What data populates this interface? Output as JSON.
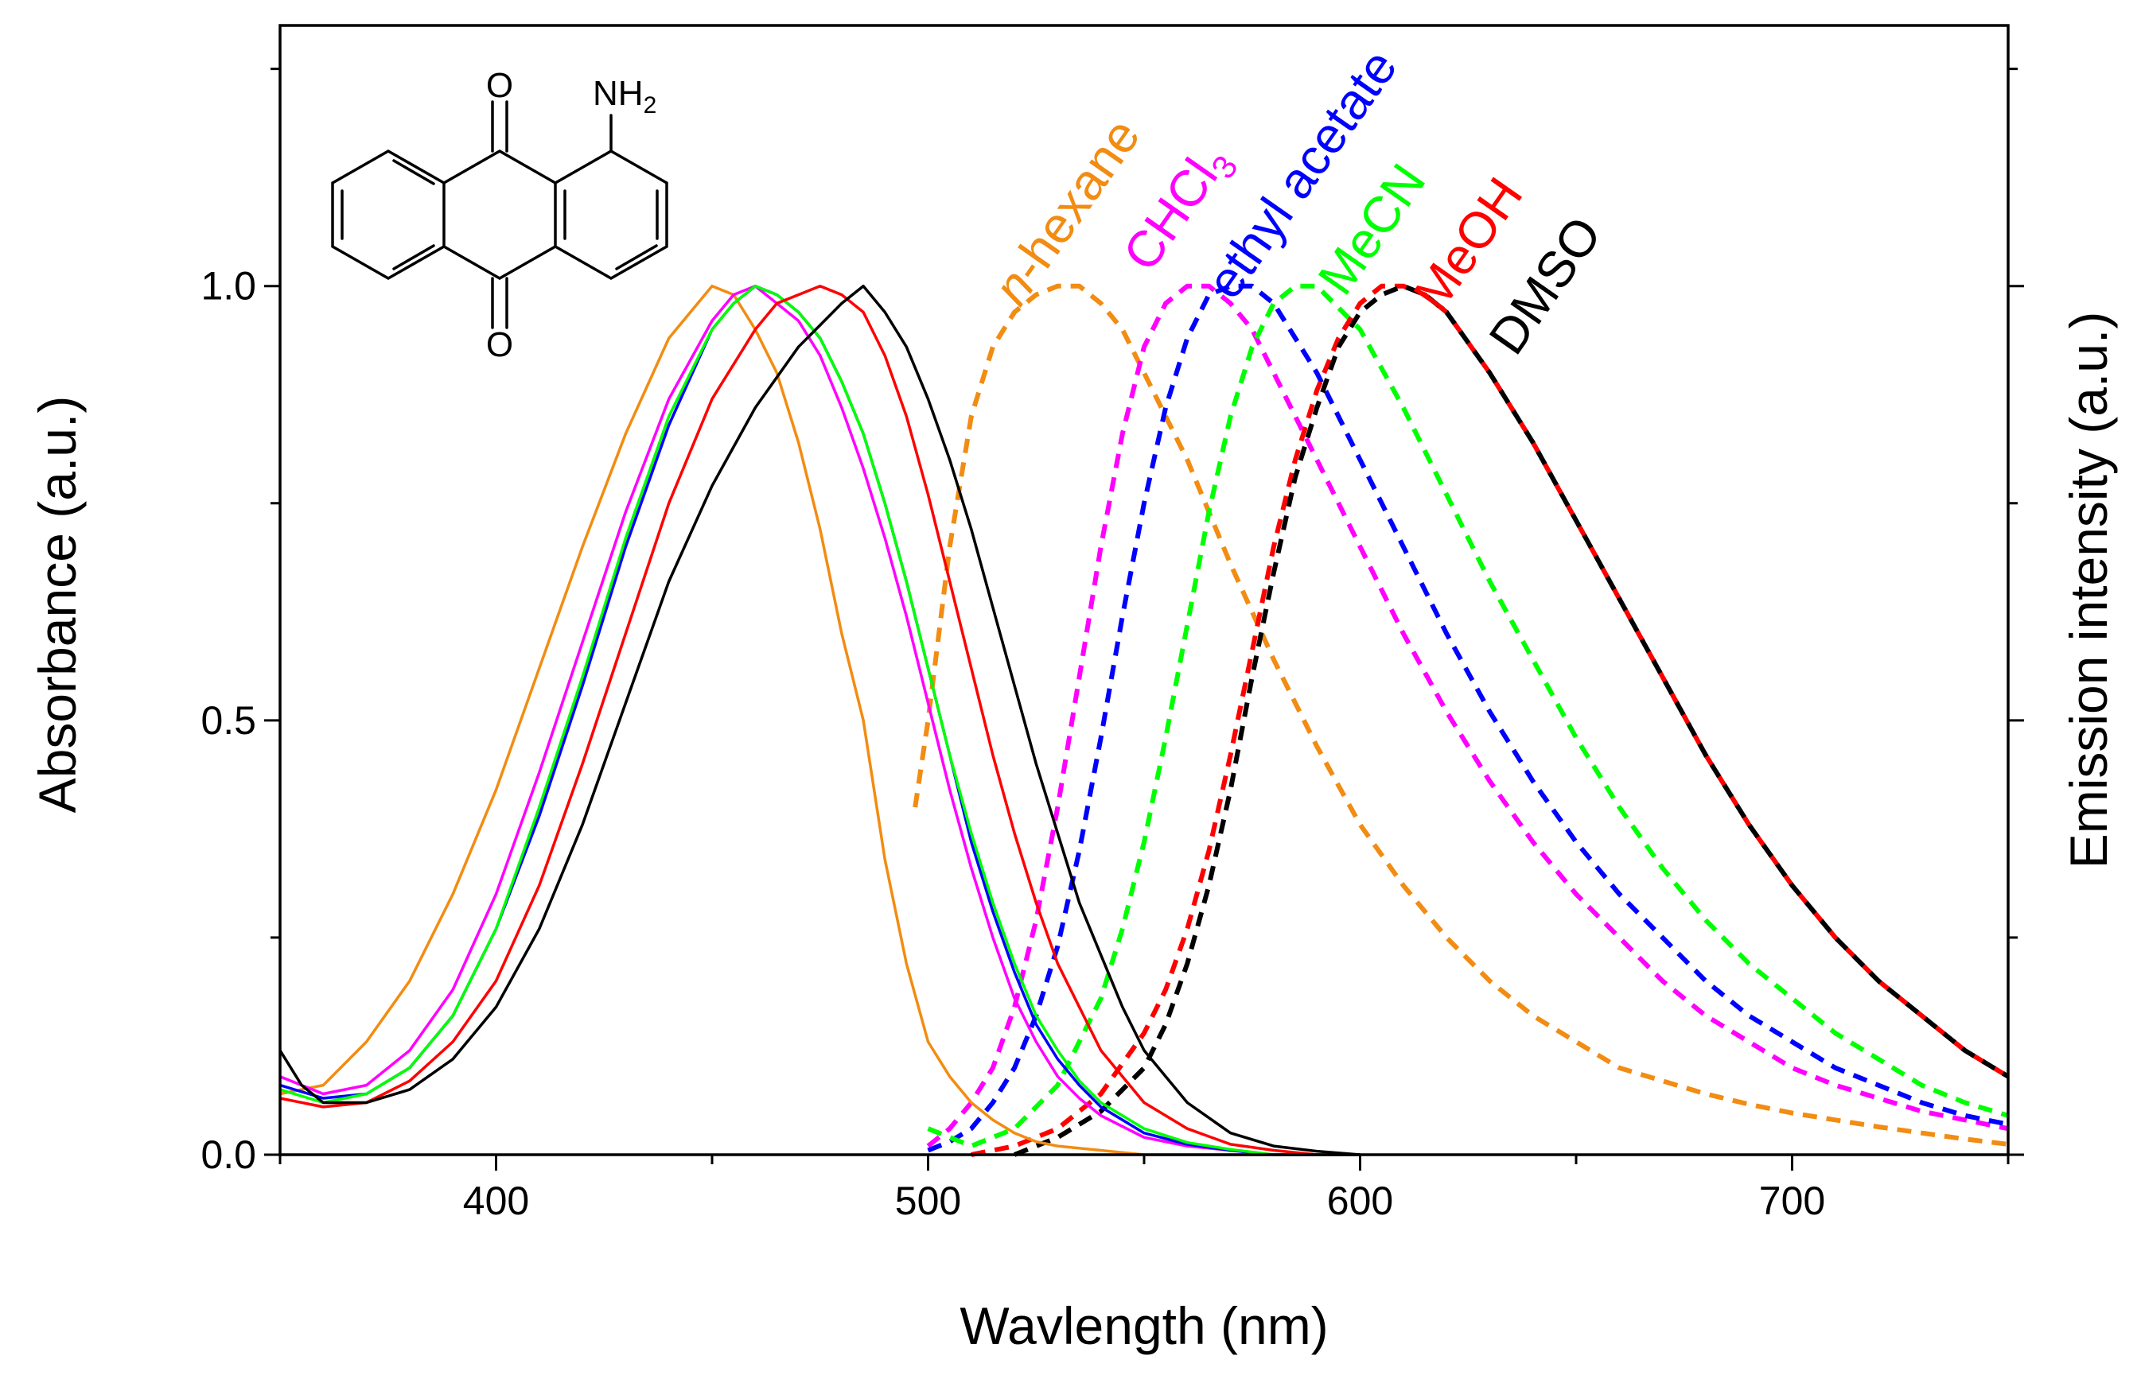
{
  "chart_data": {
    "type": "line",
    "title": "",
    "xlabel": "Wavlength (nm)",
    "ylabel": "Absorbance (a.u.)",
    "y2label": "Emission intensity (a.u.)",
    "xlim": [
      350,
      750
    ],
    "ylim": [
      0,
      1.3
    ],
    "x_ticks": [
      400,
      500,
      600,
      700
    ],
    "x_tick_labels": [
      "400",
      "500",
      "600",
      "700"
    ],
    "y_ticks": [
      0,
      0.5,
      1.0
    ],
    "y_tick_labels": [
      "0.0",
      "0.5",
      "1.0"
    ],
    "grid": false,
    "molecule_labels": {
      "top_carbonyl": "O",
      "bottom_carbonyl": "O",
      "amine": "NH",
      "amine_sub": "2"
    },
    "series": [
      {
        "name": "n-hexane",
        "label_main": "n",
        "label_rest": "-hexane",
        "color": "#F28C12",
        "kind": "absorbance",
        "x": [
          350,
          360,
          370,
          380,
          390,
          400,
          410,
          420,
          430,
          440,
          450,
          455,
          460,
          465,
          470,
          475,
          480,
          485,
          490,
          495,
          500,
          505,
          510,
          515,
          520,
          525,
          530,
          540,
          550,
          560,
          570,
          580,
          590,
          600
        ],
        "y": [
          0.07,
          0.08,
          0.13,
          0.2,
          0.3,
          0.42,
          0.56,
          0.7,
          0.83,
          0.94,
          1.0,
          0.99,
          0.95,
          0.9,
          0.82,
          0.72,
          0.6,
          0.5,
          0.34,
          0.22,
          0.13,
          0.09,
          0.06,
          0.04,
          0.025,
          0.015,
          0.01,
          0.005,
          0.0,
          0.0,
          0.0,
          0.0,
          0.0,
          0.0
        ]
      },
      {
        "name": "CHCl3",
        "label_main": "CHCl",
        "label_sub": "3",
        "color": "#FF00FF",
        "kind": "absorbance",
        "x": [
          350,
          360,
          370,
          380,
          390,
          400,
          410,
          420,
          430,
          440,
          450,
          455,
          460,
          465,
          470,
          475,
          480,
          485,
          490,
          495,
          500,
          505,
          510,
          515,
          520,
          525,
          530,
          535,
          540,
          550,
          560,
          570,
          580,
          590,
          600
        ],
        "y": [
          0.09,
          0.07,
          0.08,
          0.12,
          0.19,
          0.3,
          0.44,
          0.59,
          0.74,
          0.87,
          0.96,
          0.99,
          1.0,
          0.98,
          0.96,
          0.92,
          0.86,
          0.79,
          0.71,
          0.62,
          0.52,
          0.42,
          0.33,
          0.25,
          0.18,
          0.13,
          0.09,
          0.065,
          0.045,
          0.02,
          0.01,
          0.005,
          0.0,
          0.0,
          0.0
        ]
      },
      {
        "name": "ethyl acetate",
        "label_main": "ethyl acetate",
        "color": "#0000FF",
        "kind": "absorbance",
        "x": [
          350,
          360,
          370,
          380,
          390,
          400,
          410,
          420,
          430,
          440,
          450,
          455,
          460,
          465,
          470,
          475,
          480,
          485,
          490,
          495,
          500,
          505,
          510,
          515,
          520,
          525,
          530,
          535,
          540,
          550,
          560,
          570,
          580,
          590,
          600
        ],
        "y": [
          0.08,
          0.065,
          0.07,
          0.1,
          0.16,
          0.26,
          0.39,
          0.54,
          0.7,
          0.84,
          0.95,
          0.98,
          1.0,
          0.99,
          0.97,
          0.94,
          0.89,
          0.83,
          0.75,
          0.66,
          0.56,
          0.46,
          0.36,
          0.28,
          0.21,
          0.15,
          0.11,
          0.08,
          0.055,
          0.025,
          0.012,
          0.005,
          0.0,
          0.0,
          0.0
        ]
      },
      {
        "name": "MeCN",
        "label_main": "MeCN",
        "color": "#00FF00",
        "kind": "absorbance",
        "x": [
          350,
          360,
          370,
          380,
          390,
          400,
          410,
          420,
          430,
          440,
          450,
          455,
          460,
          465,
          470,
          475,
          480,
          485,
          490,
          495,
          500,
          505,
          510,
          515,
          520,
          525,
          530,
          535,
          540,
          550,
          560,
          570,
          580,
          590,
          600
        ],
        "y": [
          0.075,
          0.06,
          0.07,
          0.1,
          0.16,
          0.26,
          0.4,
          0.55,
          0.71,
          0.85,
          0.95,
          0.98,
          1.0,
          0.99,
          0.97,
          0.94,
          0.89,
          0.83,
          0.75,
          0.66,
          0.56,
          0.46,
          0.37,
          0.29,
          0.22,
          0.16,
          0.12,
          0.085,
          0.06,
          0.03,
          0.014,
          0.006,
          0.0,
          0.0,
          0.0
        ]
      },
      {
        "name": "MeOH",
        "label_main": "MeOH",
        "color": "#FF0000",
        "kind": "absorbance",
        "x": [
          350,
          360,
          370,
          380,
          390,
          400,
          410,
          420,
          430,
          440,
          450,
          460,
          465,
          470,
          475,
          480,
          485,
          490,
          495,
          500,
          505,
          510,
          515,
          520,
          525,
          530,
          535,
          540,
          550,
          560,
          570,
          580,
          590,
          600
        ],
        "y": [
          0.065,
          0.055,
          0.06,
          0.085,
          0.13,
          0.2,
          0.31,
          0.45,
          0.6,
          0.75,
          0.87,
          0.95,
          0.98,
          0.99,
          1.0,
          0.99,
          0.97,
          0.92,
          0.85,
          0.76,
          0.66,
          0.56,
          0.46,
          0.37,
          0.29,
          0.22,
          0.17,
          0.12,
          0.06,
          0.03,
          0.012,
          0.005,
          0.0,
          0.0
        ]
      },
      {
        "name": "DMSO",
        "label_main": "DMSO",
        "color": "#000000",
        "kind": "absorbance",
        "x": [
          350,
          355,
          360,
          370,
          380,
          390,
          400,
          410,
          420,
          430,
          440,
          450,
          460,
          470,
          480,
          485,
          490,
          495,
          500,
          505,
          510,
          515,
          520,
          525,
          530,
          535,
          540,
          545,
          550,
          560,
          570,
          580,
          590,
          600
        ],
        "y": [
          0.12,
          0.08,
          0.06,
          0.06,
          0.075,
          0.11,
          0.17,
          0.26,
          0.38,
          0.52,
          0.66,
          0.77,
          0.86,
          0.93,
          0.98,
          1.0,
          0.97,
          0.93,
          0.87,
          0.8,
          0.72,
          0.63,
          0.54,
          0.45,
          0.37,
          0.29,
          0.23,
          0.17,
          0.12,
          0.06,
          0.025,
          0.01,
          0.004,
          0.0
        ]
      }
    ],
    "emission_series": [
      {
        "name": "n-hexane",
        "color": "#F28C12",
        "kind": "emission",
        "x": [
          497,
          500,
          505,
          510,
          515,
          520,
          525,
          530,
          535,
          540,
          545,
          550,
          560,
          570,
          580,
          590,
          600,
          610,
          620,
          630,
          640,
          650,
          660,
          670,
          680,
          690,
          700,
          710,
          720,
          730,
          740,
          750
        ],
        "y": [
          0.4,
          0.5,
          0.7,
          0.85,
          0.93,
          0.97,
          0.99,
          1.0,
          1.0,
          0.98,
          0.95,
          0.9,
          0.8,
          0.68,
          0.57,
          0.47,
          0.38,
          0.31,
          0.25,
          0.2,
          0.16,
          0.13,
          0.1,
          0.085,
          0.07,
          0.058,
          0.048,
          0.04,
          0.032,
          0.025,
          0.018,
          0.012
        ]
      },
      {
        "name": "CHCl3",
        "color": "#FF00FF",
        "kind": "emission",
        "x": [
          500,
          505,
          510,
          515,
          520,
          525,
          530,
          535,
          540,
          545,
          550,
          555,
          560,
          565,
          570,
          575,
          580,
          590,
          600,
          610,
          620,
          630,
          640,
          650,
          660,
          670,
          680,
          690,
          700,
          710,
          720,
          730,
          740,
          750
        ],
        "y": [
          0.01,
          0.03,
          0.06,
          0.1,
          0.17,
          0.27,
          0.4,
          0.55,
          0.7,
          0.83,
          0.93,
          0.98,
          1.0,
          1.0,
          0.98,
          0.95,
          0.9,
          0.8,
          0.7,
          0.6,
          0.51,
          0.43,
          0.36,
          0.3,
          0.25,
          0.2,
          0.16,
          0.13,
          0.1,
          0.08,
          0.065,
          0.05,
          0.04,
          0.03
        ]
      },
      {
        "name": "ethyl acetate",
        "color": "#0000FF",
        "kind": "emission",
        "x": [
          500,
          505,
          510,
          515,
          520,
          525,
          530,
          535,
          540,
          545,
          550,
          555,
          560,
          565,
          570,
          575,
          580,
          590,
          600,
          610,
          620,
          630,
          640,
          650,
          660,
          670,
          680,
          690,
          700,
          710,
          720,
          730,
          740,
          750
        ],
        "y": [
          0.005,
          0.015,
          0.03,
          0.06,
          0.1,
          0.16,
          0.24,
          0.35,
          0.48,
          0.62,
          0.75,
          0.86,
          0.94,
          0.99,
          1.0,
          1.0,
          0.98,
          0.9,
          0.8,
          0.7,
          0.6,
          0.51,
          0.43,
          0.36,
          0.3,
          0.25,
          0.2,
          0.16,
          0.13,
          0.1,
          0.08,
          0.06,
          0.045,
          0.035
        ]
      },
      {
        "name": "MeCN",
        "color": "#00FF00",
        "kind": "emission",
        "x": [
          500,
          510,
          520,
          530,
          540,
          545,
          550,
          555,
          560,
          565,
          570,
          575,
          580,
          585,
          590,
          600,
          610,
          620,
          630,
          640,
          650,
          660,
          670,
          680,
          690,
          700,
          710,
          720,
          730,
          740,
          750
        ],
        "y": [
          0.03,
          0.01,
          0.03,
          0.08,
          0.18,
          0.26,
          0.36,
          0.48,
          0.61,
          0.74,
          0.85,
          0.93,
          0.98,
          1.0,
          1.0,
          0.95,
          0.86,
          0.76,
          0.66,
          0.57,
          0.48,
          0.4,
          0.33,
          0.27,
          0.22,
          0.18,
          0.14,
          0.11,
          0.08,
          0.06,
          0.045
        ]
      },
      {
        "name": "MeOH",
        "color": "#FF0000",
        "kind": "emission",
        "x": [
          510,
          520,
          530,
          540,
          550,
          555,
          560,
          565,
          570,
          575,
          580,
          585,
          590,
          595,
          600,
          605,
          610,
          615,
          620,
          630,
          640,
          650,
          660,
          670,
          680,
          690,
          700,
          710,
          720,
          730,
          740,
          750
        ],
        "y": [
          0.0,
          0.01,
          0.03,
          0.07,
          0.14,
          0.19,
          0.26,
          0.35,
          0.46,
          0.58,
          0.7,
          0.8,
          0.88,
          0.94,
          0.98,
          1.0,
          1.0,
          0.99,
          0.97,
          0.9,
          0.82,
          0.73,
          0.64,
          0.55,
          0.46,
          0.38,
          0.31,
          0.25,
          0.2,
          0.16,
          0.12,
          0.09
        ]
      },
      {
        "name": "DMSO",
        "color": "#000000",
        "kind": "emission",
        "x": [
          520,
          530,
          540,
          550,
          555,
          560,
          565,
          570,
          575,
          580,
          585,
          590,
          595,
          600,
          605,
          610,
          615,
          620,
          630,
          640,
          650,
          660,
          670,
          680,
          690,
          700,
          710,
          720,
          730,
          740,
          750
        ],
        "y": [
          0.0,
          0.02,
          0.05,
          0.1,
          0.15,
          0.22,
          0.31,
          0.42,
          0.55,
          0.67,
          0.78,
          0.86,
          0.93,
          0.97,
          0.99,
          1.0,
          0.99,
          0.97,
          0.9,
          0.82,
          0.73,
          0.64,
          0.55,
          0.46,
          0.38,
          0.31,
          0.25,
          0.2,
          0.16,
          0.12,
          0.09
        ]
      }
    ]
  }
}
